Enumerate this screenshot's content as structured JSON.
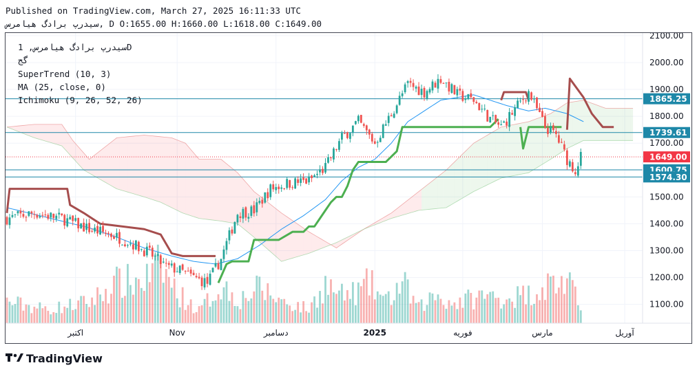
{
  "header": {
    "published": "Published on TradingView.com, March 27, 2025 16:11:33 UTC",
    "symbol_line": "سیدرپ برادگ هیامرس, D O:1655.00 H:1660.00 L:1618.00 C:1649.00"
  },
  "legend": {
    "symbol": "سیدرپ برادگ هیامرس, 1D",
    "subtitle": "گج",
    "supertrend": "SuperTrend (10, 3)",
    "ma": "MA (25, close, 0)",
    "ichimoku": "Ichimoku (9, 26, 52, 26)"
  },
  "brand": {
    "name": "TradingView"
  },
  "colors": {
    "up": "#26a69a",
    "down": "#ef5350",
    "ma": "#2196f3",
    "supertrend_up": "#4caf50",
    "supertrend_down": "#a64d4d",
    "level": "#1e88a8",
    "last": "#f23645"
  },
  "chart_data": {
    "type": "candlestick",
    "ylim": [
      1030,
      2110
    ],
    "y_ticks": [
      1100,
      1200,
      1300,
      1400,
      1500,
      1600,
      1700,
      1800,
      1900,
      2000,
      2100
    ],
    "y_tick_labels": [
      "1100.00",
      "1200.00",
      "1300.00",
      "1400.00",
      "1500.00",
      "1600.00",
      "1700.00",
      "1800.00",
      "1900.00",
      "2000.00",
      "2100.00"
    ],
    "x_labels": [
      "اکتبر",
      "Nov",
      "دسامبر",
      "2025",
      "فوریه",
      "مارس",
      "آوریل"
    ],
    "x_label_idx": [
      25,
      62,
      98,
      134,
      166,
      195,
      225
    ],
    "last_index": 209,
    "total_slots": 232,
    "price_levels": [
      {
        "value": 1865.25,
        "label": "1865.25"
      },
      {
        "value": 1739.61,
        "label": "1739.61"
      },
      {
        "value": 1600.75,
        "label": "1600.75"
      },
      {
        "value": 1574.3,
        "label": "1574.30"
      }
    ],
    "last_price": {
      "value": 1649.0,
      "label": "1649.00"
    },
    "close_anchors": [
      [
        0,
        1420
      ],
      [
        10,
        1440
      ],
      [
        20,
        1420
      ],
      [
        30,
        1380
      ],
      [
        38,
        1360
      ],
      [
        45,
        1330
      ],
      [
        52,
        1290
      ],
      [
        58,
        1240
      ],
      [
        62,
        1230
      ],
      [
        68,
        1200
      ],
      [
        73,
        1180
      ],
      [
        78,
        1270
      ],
      [
        84,
        1440
      ],
      [
        90,
        1450
      ],
      [
        96,
        1530
      ],
      [
        102,
        1550
      ],
      [
        110,
        1560
      ],
      [
        116,
        1610
      ],
      [
        122,
        1720
      ],
      [
        128,
        1780
      ],
      [
        134,
        1700
      ],
      [
        140,
        1810
      ],
      [
        146,
        1920
      ],
      [
        152,
        1890
      ],
      [
        158,
        1940
      ],
      [
        164,
        1880
      ],
      [
        170,
        1860
      ],
      [
        176,
        1790
      ],
      [
        180,
        1760
      ],
      [
        186,
        1840
      ],
      [
        190,
        1890
      ],
      [
        196,
        1760
      ],
      [
        200,
        1730
      ],
      [
        204,
        1640
      ],
      [
        207,
        1600
      ],
      [
        209,
        1649
      ]
    ],
    "volume_anchors": [
      [
        0,
        85
      ],
      [
        15,
        55
      ],
      [
        30,
        85
      ],
      [
        40,
        160
      ],
      [
        50,
        170
      ],
      [
        56,
        230
      ],
      [
        62,
        120
      ],
      [
        70,
        50
      ],
      [
        78,
        150
      ],
      [
        85,
        95
      ],
      [
        92,
        140
      ],
      [
        100,
        90
      ],
      [
        110,
        55
      ],
      [
        116,
        155
      ],
      [
        122,
        110
      ],
      [
        128,
        125
      ],
      [
        132,
        160
      ],
      [
        138,
        85
      ],
      [
        144,
        160
      ],
      [
        150,
        60
      ],
      [
        156,
        115
      ],
      [
        162,
        80
      ],
      [
        168,
        95
      ],
      [
        174,
        110
      ],
      [
        180,
        100
      ],
      [
        190,
        115
      ],
      [
        198,
        160
      ],
      [
        204,
        165
      ],
      [
        209,
        60
      ]
    ],
    "ma_anchors": [
      [
        0,
        1460
      ],
      [
        10,
        1435
      ],
      [
        20,
        1410
      ],
      [
        30,
        1385
      ],
      [
        40,
        1350
      ],
      [
        50,
        1310
      ],
      [
        60,
        1280
      ],
      [
        68,
        1260
      ],
      [
        76,
        1250
      ],
      [
        84,
        1270
      ],
      [
        92,
        1320
      ],
      [
        100,
        1380
      ],
      [
        108,
        1430
      ],
      [
        116,
        1490
      ],
      [
        122,
        1560
      ],
      [
        128,
        1610
      ],
      [
        134,
        1640
      ],
      [
        140,
        1700
      ],
      [
        146,
        1780
      ],
      [
        152,
        1820
      ],
      [
        158,
        1860
      ],
      [
        164,
        1870
      ],
      [
        170,
        1880
      ],
      [
        176,
        1860
      ],
      [
        182,
        1840
      ],
      [
        186,
        1830
      ],
      [
        190,
        1820
      ],
      [
        196,
        1830
      ],
      [
        204,
        1810
      ],
      [
        210,
        1780
      ]
    ],
    "supertrend_down_segments": [
      [
        [
          0,
          1440
        ],
        [
          1,
          1530
        ],
        [
          22,
          1530
        ],
        [
          23,
          1470
        ],
        [
          28,
          1440
        ],
        [
          34,
          1400
        ],
        [
          50,
          1380
        ],
        [
          56,
          1360
        ],
        [
          60,
          1290
        ],
        [
          64,
          1280
        ],
        [
          76,
          1280
        ]
      ],
      [
        [
          180,
          1860
        ],
        [
          181,
          1890
        ],
        [
          189,
          1890
        ],
        [
          190,
          1860
        ]
      ],
      [
        [
          204,
          1750
        ],
        [
          205,
          1940
        ],
        [
          210,
          1870
        ],
        [
          213,
          1810
        ],
        [
          217,
          1760
        ],
        [
          221,
          1760
        ]
      ]
    ],
    "supertrend_up_segments": [
      [
        [
          77,
          1180
        ],
        [
          80,
          1250
        ],
        [
          82,
          1260
        ],
        [
          88,
          1260
        ],
        [
          90,
          1340
        ],
        [
          96,
          1340
        ],
        [
          99,
          1340
        ],
        [
          104,
          1370
        ],
        [
          108,
          1370
        ],
        [
          110,
          1390
        ],
        [
          112,
          1390
        ],
        [
          114,
          1420
        ],
        [
          116,
          1450
        ],
        [
          118,
          1480
        ],
        [
          120,
          1500
        ],
        [
          122,
          1500
        ],
        [
          124,
          1540
        ],
        [
          126,
          1600
        ],
        [
          128,
          1630
        ],
        [
          138,
          1630
        ],
        [
          142,
          1670
        ],
        [
          144,
          1760
        ],
        [
          176,
          1760
        ],
        [
          179,
          1790
        ]
      ],
      [
        [
          187,
          1760
        ],
        [
          188,
          1680
        ],
        [
          190,
          1760
        ],
        [
          202,
          1760
        ]
      ]
    ],
    "ichimoku_top_anchors": [
      [
        0,
        1760
      ],
      [
        10,
        1770
      ],
      [
        20,
        1770
      ],
      [
        24,
        1710
      ],
      [
        30,
        1640
      ],
      [
        40,
        1720
      ],
      [
        50,
        1730
      ],
      [
        60,
        1720
      ],
      [
        65,
        1700
      ],
      [
        70,
        1640
      ],
      [
        78,
        1640
      ],
      [
        84,
        1590
      ],
      [
        90,
        1520
      ],
      [
        100,
        1440
      ],
      [
        110,
        1370
      ],
      [
        120,
        1310
      ],
      [
        130,
        1380
      ],
      [
        140,
        1440
      ],
      [
        150,
        1520
      ],
      [
        160,
        1600
      ],
      [
        170,
        1700
      ],
      [
        180,
        1760
      ],
      [
        190,
        1780
      ],
      [
        198,
        1810
      ],
      [
        204,
        1850
      ],
      [
        210,
        1860
      ],
      [
        218,
        1830
      ],
      [
        228,
        1830
      ]
    ],
    "ichimoku_bottom_anchors": [
      [
        0,
        1760
      ],
      [
        10,
        1720
      ],
      [
        20,
        1690
      ],
      [
        28,
        1600
      ],
      [
        40,
        1530
      ],
      [
        50,
        1500
      ],
      [
        56,
        1480
      ],
      [
        64,
        1440
      ],
      [
        70,
        1420
      ],
      [
        78,
        1410
      ],
      [
        84,
        1400
      ],
      [
        90,
        1350
      ],
      [
        100,
        1260
      ],
      [
        110,
        1290
      ],
      [
        120,
        1330
      ],
      [
        130,
        1380
      ],
      [
        140,
        1420
      ],
      [
        150,
        1450
      ],
      [
        160,
        1460
      ],
      [
        170,
        1520
      ],
      [
        180,
        1570
      ],
      [
        190,
        1590
      ],
      [
        198,
        1640
      ],
      [
        204,
        1680
      ],
      [
        210,
        1710
      ],
      [
        218,
        1710
      ],
      [
        228,
        1710
      ]
    ]
  }
}
